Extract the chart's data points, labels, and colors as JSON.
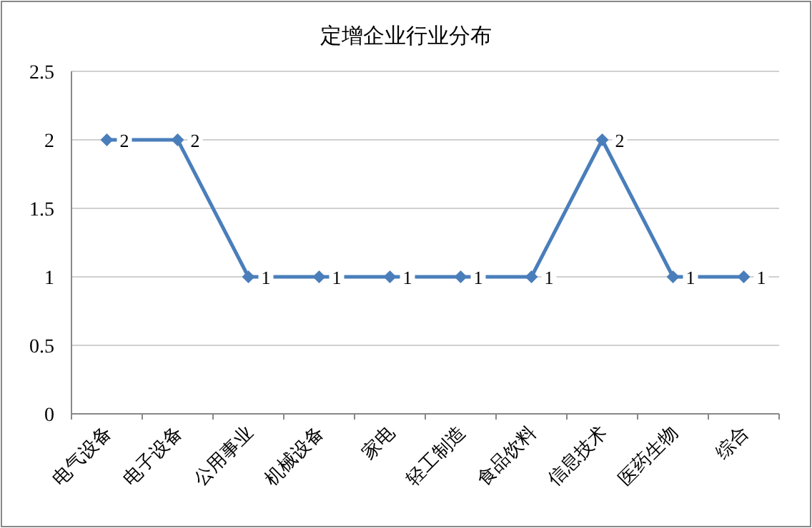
{
  "chart_data": {
    "type": "line",
    "title": "定增企业行业分布",
    "categories": [
      "电气设备",
      "电子设备",
      "公用事业",
      "机械设备",
      "家电",
      "轻工制造",
      "食品饮料",
      "信息技术",
      "医药生物",
      "综合"
    ],
    "series": [
      {
        "color": "#4a7ebb",
        "values": [
          2,
          2,
          1,
          1,
          1,
          1,
          1,
          2,
          1,
          1
        ]
      }
    ],
    "ylim": [
      0,
      2.5
    ],
    "yticks": [
      0,
      0.5,
      1,
      1.5,
      2,
      2.5
    ],
    "grid": "y",
    "marker": "diamond",
    "line_style": "solid",
    "data_labels": true
  }
}
